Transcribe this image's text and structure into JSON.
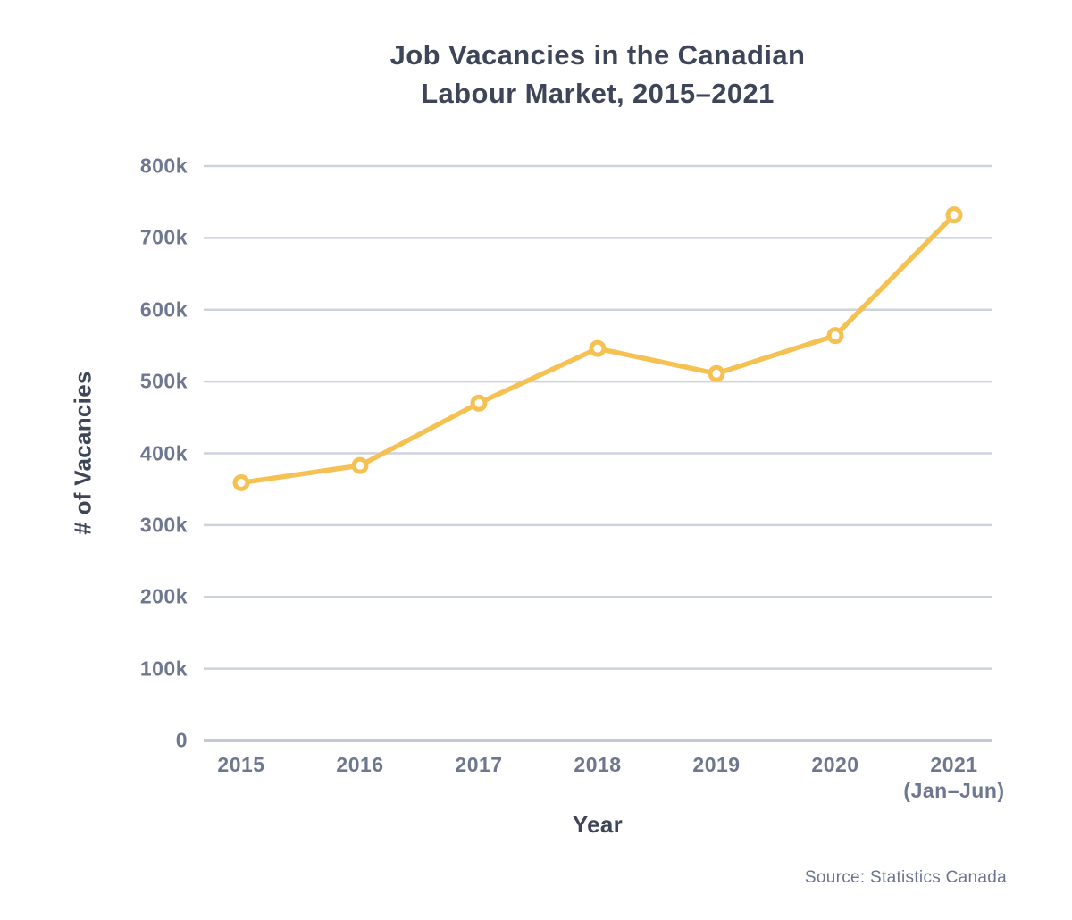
{
  "title": {
    "line1": "Job Vacancies in the Canadian",
    "line2": "Labour Market, 2015–2021"
  },
  "footer": {
    "source": "Source: Statistics Canada"
  },
  "chart_data": {
    "type": "line",
    "title": "Job Vacancies in the Canadian Labour Market, 2015–2021",
    "xlabel": "Year",
    "ylabel": "# of Vacancies",
    "categories": [
      "2015",
      "2016",
      "2017",
      "2018",
      "2019",
      "2020",
      "2021"
    ],
    "x_sublabels": [
      "",
      "",
      "",
      "",
      "",
      "",
      "(Jan–Jun)"
    ],
    "series": [
      {
        "name": "Job vacancies",
        "values": [
          359000,
          383000,
          470000,
          546000,
          511000,
          564000,
          732000
        ]
      }
    ],
    "ylim": [
      0,
      800000
    ],
    "ytick_step": 100000,
    "ytick_labels": [
      "0",
      "100k",
      "200k",
      "300k",
      "400k",
      "500k",
      "600k",
      "700k",
      "800k"
    ],
    "grid": true,
    "legend": false,
    "marker": "open-circle",
    "colors": {
      "line": "#F6C153",
      "marker_fill": "#FFFFFF",
      "grid": "#CDD2DD",
      "axis": "#C3C9D6",
      "text_dark": "#3E4558",
      "text_muted": "#6E7790",
      "background": "#FFFFFF"
    }
  }
}
